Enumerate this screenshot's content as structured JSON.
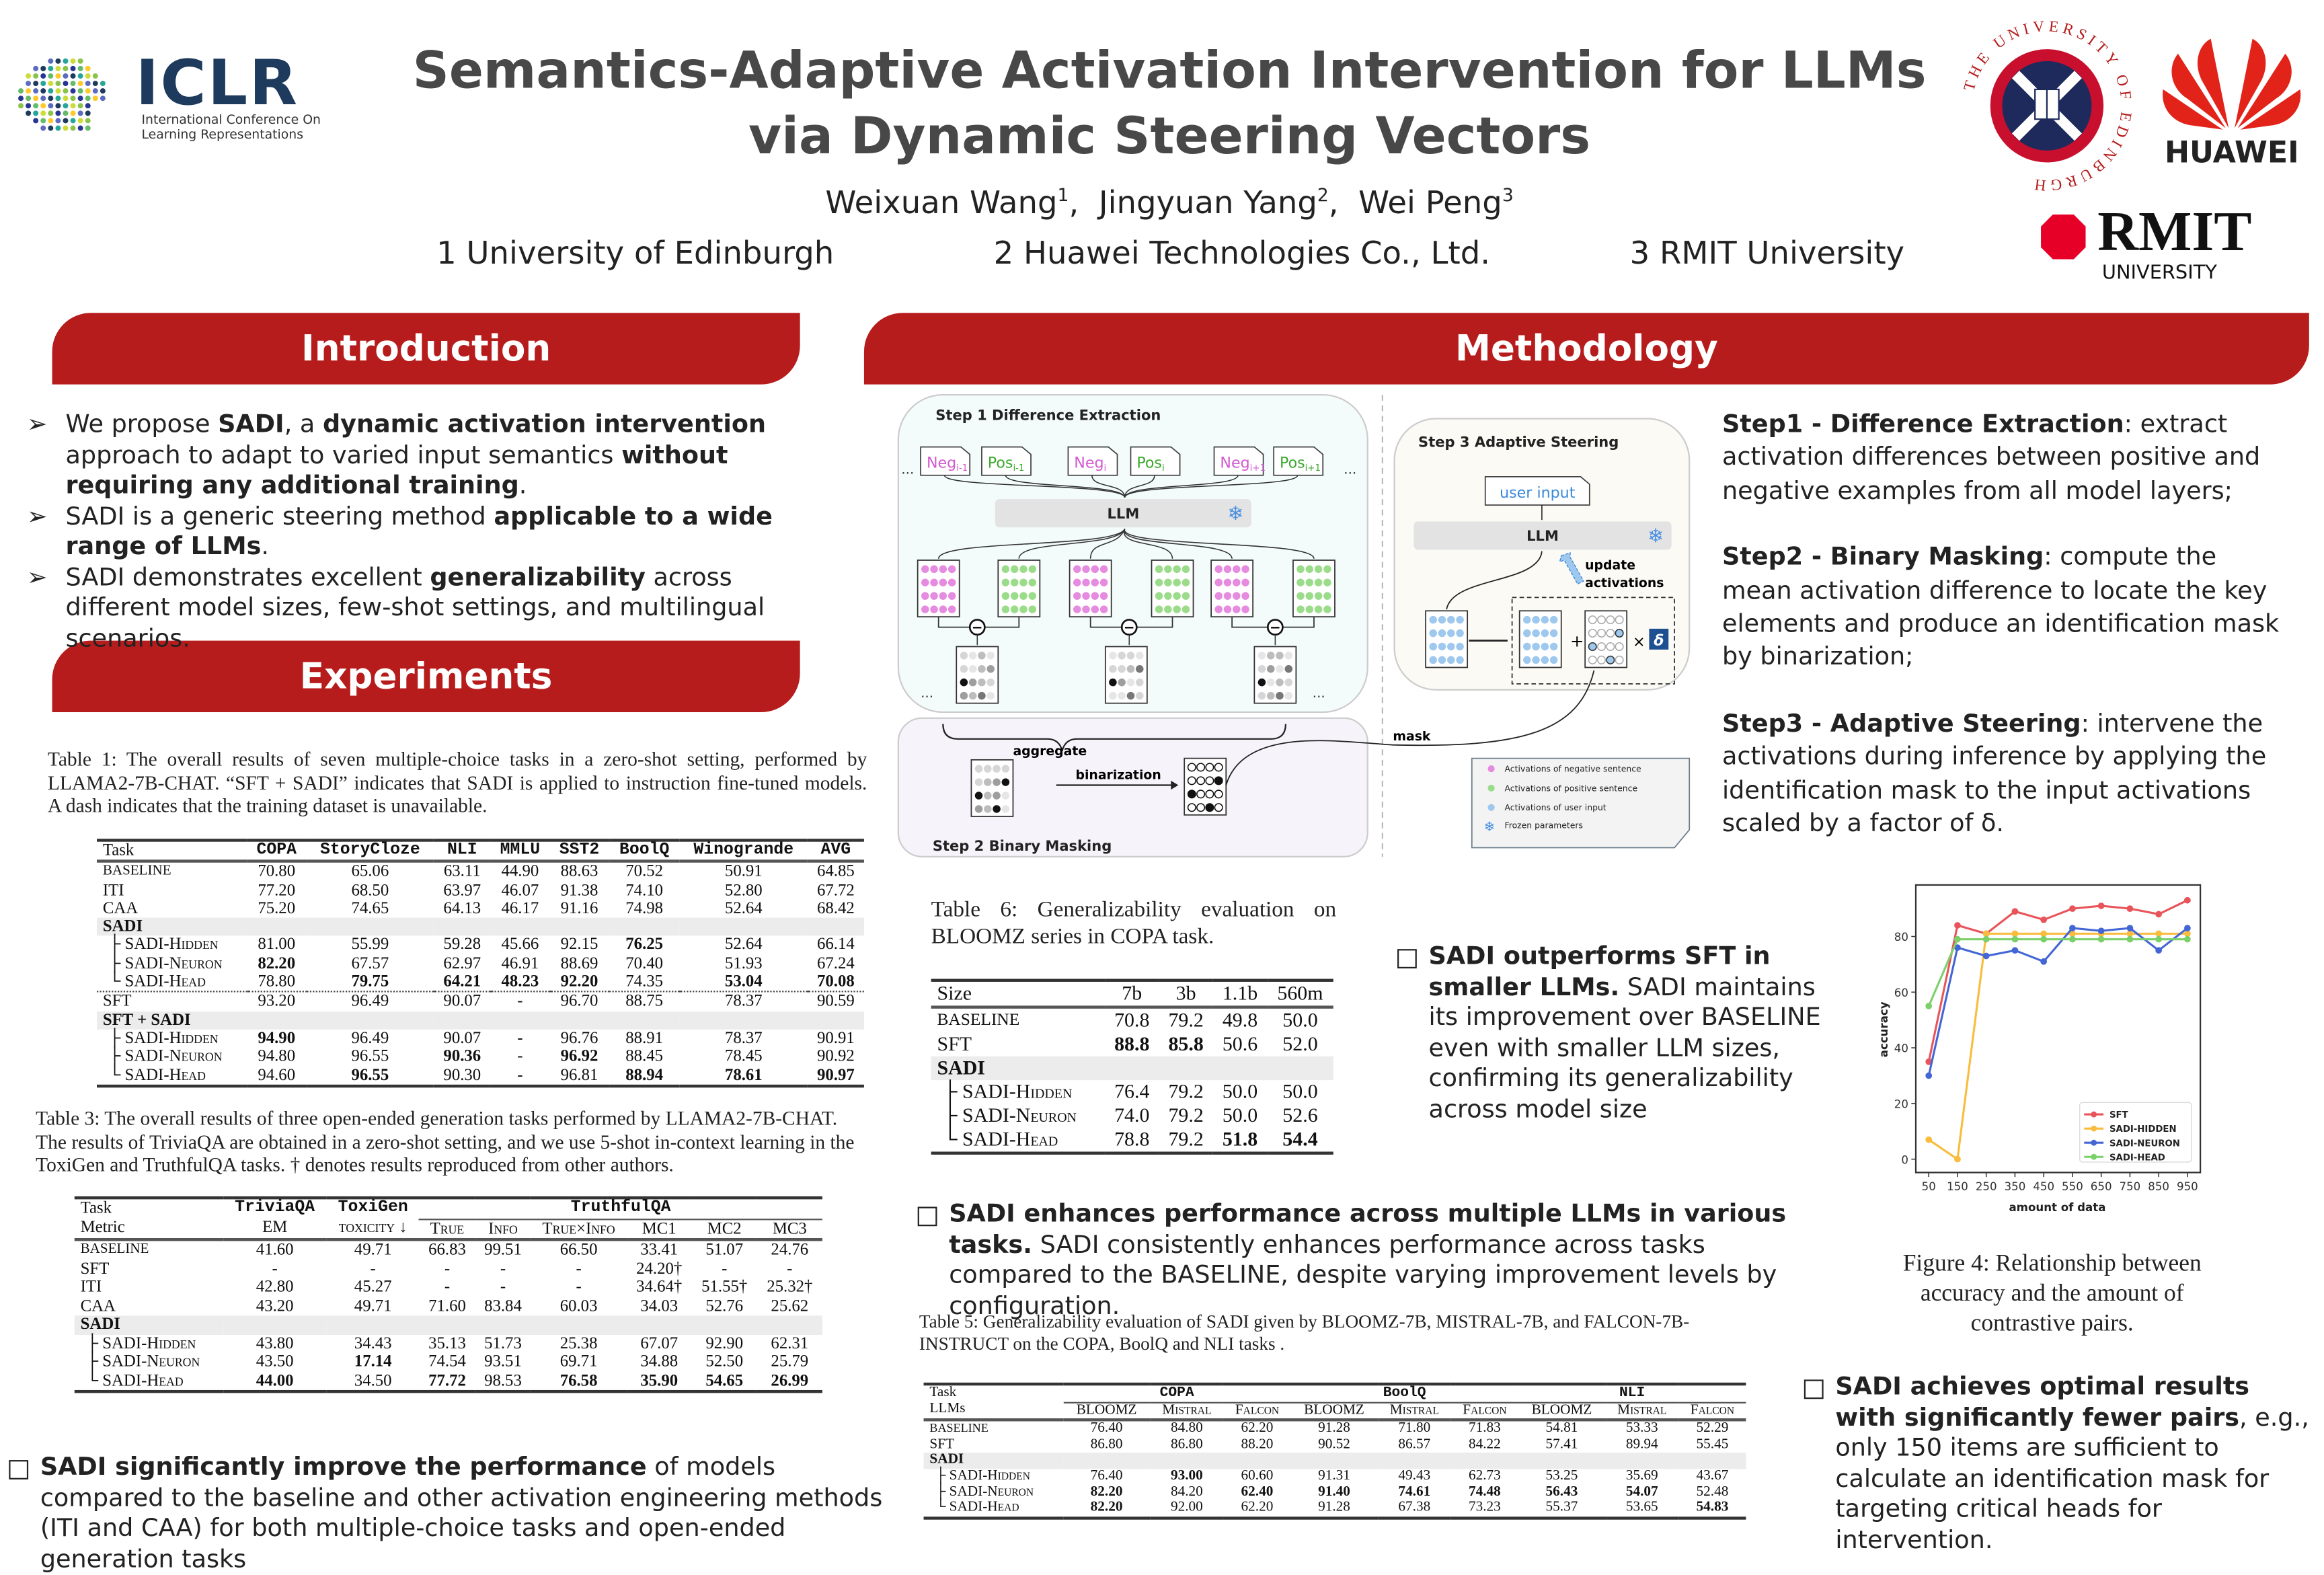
{
  "logos": {
    "iclr": {
      "name": "ICLR",
      "sub1": "International Conference On",
      "sub2": "Learning Representations"
    },
    "edinburgh": {
      "ring_text": "THE UNIVERSITY OF EDINBURGH"
    },
    "huawei": {
      "name": "HUAWEI",
      "color": "#e2231a"
    },
    "rmit": {
      "name": "RMIT",
      "sub": "UNIVERSITY",
      "color": "#e60028"
    }
  },
  "header": {
    "title_line1": "Semantics-Adaptive Activation Intervention for LLMs",
    "title_line2": "via Dynamic Steering Vectors",
    "authors": [
      {
        "name": "Weixuan Wang",
        "aff": "1"
      },
      {
        "name": "Jingyuan Yang",
        "aff": "2"
      },
      {
        "name": "Wei Peng",
        "aff": "3"
      }
    ],
    "affiliations": [
      "1 University of Edinburgh",
      "2 Huawei Technologies Co., Ltd.",
      "3 RMIT University"
    ]
  },
  "colors": {
    "banner": "#b71c1c",
    "sft": "#e8545a",
    "sadi_hidden": "#f9bc3c",
    "sadi_neuron": "#4466d4",
    "sadi_head": "#7cd06a"
  },
  "introduction": {
    "heading": "Introduction",
    "bullets": [
      [
        {
          "t": "We propose "
        },
        {
          "t": "SADI",
          "b": true
        },
        {
          "t": ", a "
        },
        {
          "t": "dynamic activation intervention",
          "b": true
        },
        {
          "t": " approach to adapt to varied input semantics "
        },
        {
          "t": "without requiring any additional training",
          "b": true
        },
        {
          "t": "."
        }
      ],
      [
        {
          "t": "SADI is a generic steering method "
        },
        {
          "t": "applicable to a wide range of LLMs",
          "b": true
        },
        {
          "t": "."
        }
      ],
      [
        {
          "t": "SADI demonstrates excellent "
        },
        {
          "t": "generalizability",
          "b": true
        },
        {
          "t": " across different model sizes, few-shot settings, and multilingual scenarios."
        }
      ]
    ]
  },
  "experiments": {
    "heading": "Experiments",
    "table1": {
      "caption": "Table 1:  The overall results of seven multiple-choice tasks in a zero-shot setting, performed by LLAMA2-7B-CHAT. “SFT + SADI” indicates that SADI is applied to instruction fine-tuned models. A dash indicates that the training dataset is unavailable.",
      "header": [
        [
          {
            "t": "Task"
          },
          {
            "t": "COPA",
            "m": true
          },
          {
            "t": "StoryCloze",
            "m": true
          },
          {
            "t": "NLI",
            "m": true
          },
          {
            "t": "MMLU",
            "m": true
          },
          {
            "t": "SST2",
            "m": true
          },
          {
            "t": "BoolQ",
            "m": true
          },
          {
            "t": "Winogrande",
            "m": true
          },
          {
            "t": "AVG",
            "m": true
          }
        ]
      ],
      "rows": [
        {
          "label": "BASELINE",
          "v": [
            "70.80",
            "65.06",
            "63.11",
            "44.90",
            "88.63",
            "70.52",
            "50.91",
            "64.85"
          ],
          "bold": []
        },
        {
          "label": "ITI",
          "v": [
            "77.20",
            "68.50",
            "63.97",
            "46.07",
            "91.38",
            "74.10",
            "52.80",
            "67.72"
          ],
          "bold": []
        },
        {
          "label": "CAA",
          "v": [
            "75.20",
            "74.65",
            "64.13",
            "46.17",
            "91.16",
            "74.98",
            "52.64",
            "68.42"
          ],
          "bold": []
        },
        {
          "label": "SADI",
          "kind": "group"
        },
        {
          "label": "├ SADI-Hidden",
          "kind": "sub",
          "v": [
            "81.00",
            "55.99",
            "59.28",
            "45.66",
            "92.15",
            "76.25",
            "52.64",
            "66.14"
          ],
          "bold": [
            5
          ]
        },
        {
          "label": "├ SADI-Neuron",
          "kind": "sub",
          "v": [
            "82.20",
            "67.57",
            "62.97",
            "46.91",
            "88.69",
            "70.40",
            "51.93",
            "67.24"
          ],
          "bold": [
            0
          ]
        },
        {
          "label": "└ SADI-Head",
          "kind": "sub",
          "v": [
            "78.80",
            "79.75",
            "64.21",
            "48.23",
            "92.20",
            "74.35",
            "53.04",
            "70.08"
          ],
          "bold": [
            1,
            2,
            3,
            4,
            6,
            7
          ]
        },
        {
          "label": "SFT",
          "kind": "dotted",
          "v": [
            "93.20",
            "96.49",
            "90.07",
            "-",
            "96.70",
            "88.75",
            "78.37",
            "90.59"
          ],
          "bold": []
        },
        {
          "label": "SFT + SADI",
          "kind": "group"
        },
        {
          "label": "├ SADI-Hidden",
          "kind": "sub",
          "v": [
            "94.90",
            "96.49",
            "90.07",
            "-",
            "96.76",
            "88.91",
            "78.37",
            "90.91"
          ],
          "bold": [
            0
          ]
        },
        {
          "label": "├ SADI-Neuron",
          "kind": "sub",
          "v": [
            "94.80",
            "96.55",
            "90.36",
            "-",
            "96.92",
            "88.45",
            "78.45",
            "90.92"
          ],
          "bold": [
            2,
            4
          ]
        },
        {
          "label": "└ SADI-Head",
          "kind": "sub",
          "v": [
            "94.60",
            "96.55",
            "90.30",
            "-",
            "96.81",
            "88.94",
            "78.61",
            "90.97"
          ],
          "bold": [
            1,
            5,
            6,
            7
          ]
        }
      ]
    },
    "table3": {
      "caption": "Table 3:  The overall results of three open-ended generation tasks performed by LLAMA2-7B-CHAT. The results of TriviaQA are obtained in a zero-shot setting, and we use 5-shot in-context learning in the ToxiGen and TruthfulQA tasks. † denotes results reproduced from other authors.",
      "header": [
        [
          {
            "t": "Task"
          },
          {
            "t": "TriviaQA",
            "m": true
          },
          {
            "t": "ToxiGen",
            "m": true
          },
          {
            "t": "TruthfulQA",
            "m": true,
            "span": 6
          }
        ],
        [
          {
            "t": "Metric"
          },
          {
            "t": "EM"
          },
          {
            "t": "toxicity ↓"
          },
          {
            "t": "True"
          },
          {
            "t": "Info"
          },
          {
            "t": "True×Info"
          },
          {
            "t": "MC1"
          },
          {
            "t": "MC2"
          },
          {
            "t": "MC3"
          }
        ]
      ],
      "rows": [
        {
          "label": "BASELINE",
          "v": [
            "41.60",
            "49.71",
            "66.83",
            "99.51",
            "66.50",
            "33.41",
            "51.07",
            "24.76"
          ],
          "bold": []
        },
        {
          "label": "SFT",
          "v": [
            "-",
            "-",
            "-",
            "-",
            "-",
            "24.20†",
            "-",
            "-"
          ],
          "bold": []
        },
        {
          "label": "ITI",
          "v": [
            "42.80",
            "45.27",
            "-",
            "-",
            "-",
            "34.64†",
            "51.55†",
            "25.32†"
          ],
          "bold": []
        },
        {
          "label": "CAA",
          "v": [
            "43.20",
            "49.71",
            "71.60",
            "83.84",
            "60.03",
            "34.03",
            "52.76",
            "25.62"
          ],
          "bold": []
        },
        {
          "label": "SADI",
          "kind": "group"
        },
        {
          "label": "├ SADI-Hidden",
          "kind": "sub",
          "v": [
            "43.80",
            "34.43",
            "35.13",
            "51.73",
            "25.38",
            "67.07",
            "92.90",
            "62.31"
          ],
          "bold": []
        },
        {
          "label": "├ SADI-Neuron",
          "kind": "sub",
          "v": [
            "43.50",
            "17.14",
            "74.54",
            "93.51",
            "69.71",
            "34.88",
            "52.50",
            "25.79"
          ],
          "bold": [
            1
          ]
        },
        {
          "label": "└ SADI-Head",
          "kind": "sub",
          "v": [
            "44.00",
            "34.50",
            "77.72",
            "98.53",
            "76.58",
            "35.90",
            "54.65",
            "26.99"
          ],
          "bold": [
            0,
            2,
            4,
            5,
            6,
            7
          ]
        }
      ]
    },
    "conclusion": [
      {
        "t": "SADI significantly improve the performance",
        "b": true
      },
      {
        "t": " of models compared to the baseline and other activation engineering methods (ITI and CAA) for both multiple-choice tasks and open-ended generation tasks"
      }
    ]
  },
  "methodology": {
    "heading": "Methodology",
    "diagram": {
      "step1_title": "Step 1 Difference Extraction",
      "step2_title": "Step 2 Binary Masking",
      "step3_title": "Step 3 Adaptive Steering",
      "inputs": [
        {
          "base": "Neg",
          "sub": "i-1",
          "kind": "neg"
        },
        {
          "base": "Pos",
          "sub": "i-1",
          "kind": "pos"
        },
        {
          "base": "Neg",
          "sub": "i",
          "kind": "neg"
        },
        {
          "base": "Pos",
          "sub": "i",
          "kind": "pos"
        },
        {
          "base": "Neg",
          "sub": "i+1",
          "kind": "neg"
        },
        {
          "base": "Pos",
          "sub": "i+1",
          "kind": "pos"
        }
      ],
      "ellipsis": "...",
      "llm": "LLM",
      "user_input": "user input",
      "update": "update",
      "activations": "activations",
      "aggregate": "aggregate",
      "binarization": "binarization",
      "mask": "mask",
      "plus": "+",
      "times": "×",
      "delta": "δ",
      "minus": "−",
      "legend": [
        {
          "label": "Activations of negative sentence",
          "color": "#e58be0"
        },
        {
          "label": "Activations of positive sentence",
          "color": "#9bdc8a"
        },
        {
          "label": "Activations of user input",
          "color": "#9fc8ee"
        },
        {
          "label": "Frozen parameters",
          "icon": "snowflake-icon"
        }
      ]
    },
    "steps": [
      {
        "title": "Step1 - Difference Extraction",
        "text": ": extract activation differences between positive and negative examples from all model layers;"
      },
      {
        "title": "Step2 - Binary Masking",
        "text": ": compute the mean activation difference to locate the key elements and produce an identification mask by binarization;"
      },
      {
        "title": "Step3 - Adaptive Steering",
        "text": ": intervene the activations during inference by applying the identification mask to the input activations scaled by a factor of δ."
      }
    ],
    "table6": {
      "caption": "Table 6:  Generalizability evaluation on BLOOMZ series in COPA task.",
      "header": [
        [
          {
            "t": "Size"
          },
          {
            "t": "7b"
          },
          {
            "t": "3b"
          },
          {
            "t": "1.1b"
          },
          {
            "t": "560m"
          }
        ]
      ],
      "rows": [
        {
          "label": "BASELINE",
          "v": [
            "70.8",
            "79.2",
            "49.8",
            "50.0"
          ],
          "bold": []
        },
        {
          "label": "SFT",
          "v": [
            "88.8",
            "85.8",
            "50.6",
            "52.0"
          ],
          "bold": [
            0,
            1
          ]
        },
        {
          "label": "SADI",
          "kind": "group"
        },
        {
          "label": "├ SADI-Hidden",
          "kind": "sub",
          "v": [
            "76.4",
            "79.2",
            "50.0",
            "50.0"
          ],
          "bold": []
        },
        {
          "label": "├ SADI-Neuron",
          "kind": "sub",
          "v": [
            "74.0",
            "79.2",
            "50.0",
            "52.6"
          ],
          "bold": []
        },
        {
          "label": "└ SADI-Head",
          "kind": "sub",
          "v": [
            "78.8",
            "79.2",
            "51.8",
            "54.4"
          ],
          "bold": [
            2,
            3
          ]
        }
      ]
    },
    "outperforms": [
      {
        "t": "SADI outperforms SFT in smaller LLMs.",
        "b": true
      },
      {
        "t": "  SADI maintains its improvement over BASELINE even with smaller LLM sizes, confirming its generalizability across model size"
      }
    ],
    "enhances": [
      {
        "t": "SADI enhances performance across multiple LLMs in various tasks.",
        "b": true
      },
      {
        "t": " SADI consistently enhances performance across tasks compared to the BASELINE, despite varying improvement levels by configuration."
      }
    ],
    "table5": {
      "caption": "Table 5:  Generalizability evaluation of SADI given by BLOOMZ-7B, MISTRAL-7B, and FALCON-7B-INSTRUCT on the COPA, BoolQ and NLI tasks .",
      "header": [
        [
          {
            "t": "Task"
          },
          {
            "t": "COPA",
            "m": true,
            "span": 3
          },
          {
            "t": "BoolQ",
            "m": true,
            "span": 3
          },
          {
            "t": "NLI",
            "m": true,
            "span": 3
          }
        ],
        [
          {
            "t": "LLMs"
          },
          {
            "t": "BLOOMZ"
          },
          {
            "t": "Mistral"
          },
          {
            "t": "Falcon"
          },
          {
            "t": "BLOOMZ"
          },
          {
            "t": "Mistral"
          },
          {
            "t": "Falcon"
          },
          {
            "t": "BLOOMZ"
          },
          {
            "t": "Mistral"
          },
          {
            "t": "Falcon"
          }
        ]
      ],
      "rows": [
        {
          "label": "BASELINE",
          "v": [
            "76.40",
            "84.80",
            "62.20",
            "91.28",
            "71.80",
            "71.83",
            "54.81",
            "53.33",
            "52.29"
          ],
          "bold": []
        },
        {
          "label": "SFT",
          "v": [
            "86.80",
            "86.80",
            "88.20",
            "90.52",
            "86.57",
            "84.22",
            "57.41",
            "89.94",
            "55.45"
          ],
          "bold": []
        },
        {
          "label": "SADI",
          "kind": "group"
        },
        {
          "label": "├ SADI-Hidden",
          "kind": "sub",
          "v": [
            "76.40",
            "93.00",
            "60.60",
            "91.31",
            "49.43",
            "62.73",
            "53.25",
            "35.69",
            "43.67"
          ],
          "bold": [
            1
          ]
        },
        {
          "label": "├ SADI-Neuron",
          "kind": "sub",
          "v": [
            "82.20",
            "84.20",
            "62.40",
            "91.40",
            "74.61",
            "74.48",
            "56.43",
            "54.07",
            "52.48"
          ],
          "bold": [
            0,
            2,
            3,
            4,
            5,
            6,
            7
          ]
        },
        {
          "label": "└ SADI-Head",
          "kind": "sub",
          "v": [
            "82.20",
            "92.00",
            "62.20",
            "91.28",
            "67.38",
            "73.23",
            "55.37",
            "53.65",
            "54.83"
          ],
          "bold": [
            0,
            8
          ]
        }
      ]
    },
    "figure4_caption": "Figure 4: Relationship between accuracy and the amount of contrastive pairs.",
    "optimal": [
      {
        "t": "SADI achieves optimal results with significantly fewer pairs",
        "b": true
      },
      {
        "t": ", e.g., only 150 items are sufficient to calculate an identification mask for targeting critical heads for intervention."
      }
    ]
  },
  "chart_data": {
    "type": "line",
    "xlabel": "amount of data",
    "ylabel": "accuracy",
    "x": [
      50,
      150,
      250,
      350,
      450,
      550,
      650,
      750,
      850,
      950
    ],
    "xticks": [
      "50",
      "150",
      "250",
      "350",
      "450",
      "550",
      "650",
      "750",
      "850",
      "950"
    ],
    "yticks": [
      "0",
      "20",
      "40",
      "60",
      "80"
    ],
    "xlim": [
      5,
      995
    ],
    "ylim": [
      -4.8,
      98.5
    ],
    "grid": false,
    "legend_position": "bottom-right",
    "series": [
      {
        "name": "SFT",
        "color": "#e8545a",
        "values": [
          35,
          84,
          81,
          89,
          86,
          90,
          91,
          90,
          88,
          93
        ]
      },
      {
        "name": "SADI-HIDDEN",
        "color": "#f9bc3c",
        "values": [
          7,
          0,
          81,
          81,
          81,
          81,
          81,
          81,
          81,
          81
        ]
      },
      {
        "name": "SADI-NEURON",
        "color": "#4466d4",
        "values": [
          30,
          76,
          73,
          75,
          71,
          83,
          82,
          83,
          75,
          83
        ]
      },
      {
        "name": "SADI-HEAD",
        "color": "#7cd06a",
        "values": [
          55,
          79,
          79,
          79,
          79,
          79,
          79,
          79,
          79,
          79
        ]
      }
    ]
  }
}
